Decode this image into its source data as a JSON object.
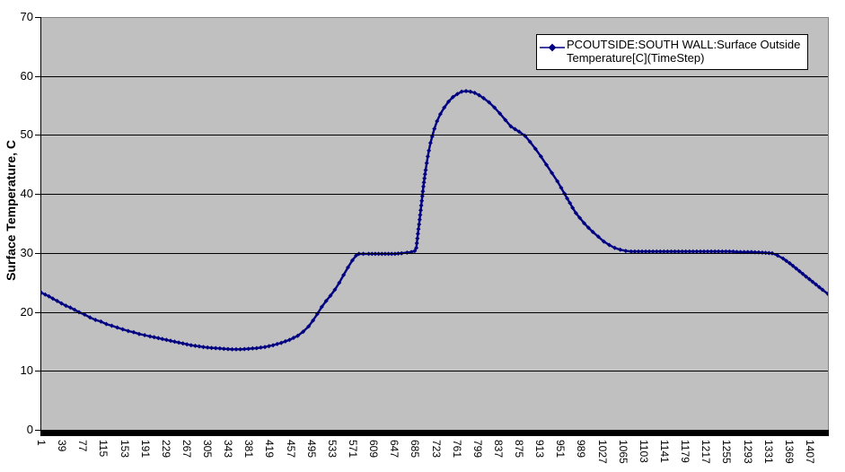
{
  "chart": {
    "y_axis": {
      "title": "Surface Temperature, C",
      "tick_values": [
        70,
        60,
        50,
        40,
        30,
        20,
        10,
        0
      ]
    },
    "x_axis": {
      "tick_values": [
        1,
        39,
        77,
        115,
        153,
        191,
        229,
        267,
        305,
        343,
        381,
        419,
        457,
        495,
        533,
        571,
        609,
        647,
        685,
        723,
        761,
        799,
        837,
        875,
        913,
        951,
        989,
        1027,
        1065,
        1103,
        1141,
        1179,
        1217,
        1255,
        1293,
        1331,
        1369,
        1407
      ]
    },
    "legend": {
      "line1": "PCOUTSIDE:SOUTH WALL:Surface Outside",
      "line2": "Temperature[C](TimeStep)",
      "marker_icon": "diamond-line-marker"
    },
    "colors": {
      "series": "#000080",
      "plot_background": "#c0c0c0",
      "gridline": "#000000",
      "chart_background": "#ffffff"
    }
  },
  "chart_data": {
    "type": "line",
    "title": "",
    "xlabel": "",
    "ylabel": "Surface Temperature, C",
    "xlim": [
      1,
      1440
    ],
    "ylim": [
      0,
      70
    ],
    "x_tick_step": 38,
    "grid": true,
    "gridline_values": [
      10,
      20,
      30,
      40,
      50,
      60
    ],
    "legend_position": "top-right",
    "series": [
      {
        "name": "PCOUTSIDE:SOUTH WALL:Surface Outside Temperature[C](TimeStep)",
        "marker": "diamond",
        "color": "#000080",
        "points": [
          [
            1,
            23.4
          ],
          [
            8,
            23.1
          ],
          [
            15,
            22.8
          ],
          [
            22,
            22.4
          ],
          [
            30,
            22.0
          ],
          [
            38,
            21.6
          ],
          [
            46,
            21.2
          ],
          [
            54,
            20.9
          ],
          [
            62,
            20.5
          ],
          [
            70,
            20.1
          ],
          [
            80,
            19.7
          ],
          [
            90,
            19.2
          ],
          [
            100,
            18.8
          ],
          [
            110,
            18.5
          ],
          [
            120,
            18.1
          ],
          [
            130,
            17.8
          ],
          [
            140,
            17.5
          ],
          [
            150,
            17.2
          ],
          [
            160,
            16.9
          ],
          [
            170,
            16.7
          ],
          [
            180,
            16.4
          ],
          [
            190,
            16.2
          ],
          [
            200,
            16.0
          ],
          [
            215,
            15.7
          ],
          [
            230,
            15.4
          ],
          [
            245,
            15.1
          ],
          [
            260,
            14.8
          ],
          [
            275,
            14.5
          ],
          [
            290,
            14.3
          ],
          [
            305,
            14.1
          ],
          [
            320,
            14.0
          ],
          [
            335,
            13.9
          ],
          [
            350,
            13.8
          ],
          [
            365,
            13.8
          ],
          [
            380,
            13.9
          ],
          [
            395,
            14.0
          ],
          [
            410,
            14.2
          ],
          [
            425,
            14.5
          ],
          [
            440,
            14.9
          ],
          [
            455,
            15.4
          ],
          [
            470,
            16.1
          ],
          [
            480,
            16.8
          ],
          [
            490,
            17.7
          ],
          [
            498,
            18.7
          ],
          [
            506,
            19.8
          ],
          [
            514,
            21.0
          ],
          [
            522,
            22.0
          ],
          [
            530,
            22.9
          ],
          [
            538,
            23.9
          ],
          [
            546,
            25.1
          ],
          [
            554,
            26.4
          ],
          [
            562,
            27.7
          ],
          [
            570,
            28.9
          ],
          [
            577,
            29.7
          ],
          [
            582,
            30.0
          ],
          [
            590,
            30.0
          ],
          [
            600,
            30.0
          ],
          [
            612,
            30.0
          ],
          [
            624,
            30.0
          ],
          [
            636,
            30.0
          ],
          [
            648,
            30.0
          ],
          [
            660,
            30.1
          ],
          [
            670,
            30.2
          ],
          [
            678,
            30.3
          ],
          [
            684,
            30.5
          ],
          [
            687,
            31.0
          ],
          [
            688,
            31.8
          ],
          [
            689,
            32.6
          ],
          [
            690,
            33.4
          ],
          [
            691,
            34.2
          ],
          [
            692,
            35.0
          ],
          [
            693,
            35.8
          ],
          [
            694,
            36.6
          ],
          [
            695,
            37.4
          ],
          [
            696,
            38.2
          ],
          [
            697,
            39.0
          ],
          [
            698,
            39.8
          ],
          [
            699,
            40.6
          ],
          [
            700,
            41.4
          ],
          [
            701,
            42.1
          ],
          [
            702,
            42.8
          ],
          [
            703,
            43.5
          ],
          [
            704,
            44.2
          ],
          [
            706,
            45.4
          ],
          [
            708,
            46.5
          ],
          [
            710,
            47.5
          ],
          [
            713,
            48.8
          ],
          [
            716,
            49.9
          ],
          [
            720,
            51.2
          ],
          [
            725,
            52.5
          ],
          [
            731,
            53.7
          ],
          [
            738,
            54.8
          ],
          [
            746,
            55.8
          ],
          [
            754,
            56.6
          ],
          [
            762,
            57.1
          ],
          [
            770,
            57.5
          ],
          [
            778,
            57.6
          ],
          [
            786,
            57.5
          ],
          [
            794,
            57.3
          ],
          [
            802,
            56.9
          ],
          [
            810,
            56.4
          ],
          [
            820,
            55.7
          ],
          [
            830,
            54.8
          ],
          [
            840,
            53.8
          ],
          [
            850,
            52.7
          ],
          [
            860,
            51.6
          ],
          [
            875,
            50.7
          ],
          [
            886,
            50.0
          ],
          [
            895,
            49.0
          ],
          [
            905,
            47.8
          ],
          [
            915,
            46.5
          ],
          [
            925,
            45.1
          ],
          [
            935,
            43.7
          ],
          [
            945,
            42.3
          ],
          [
            952,
            41.2
          ],
          [
            958,
            40.2
          ],
          [
            963,
            39.4
          ],
          [
            968,
            38.6
          ],
          [
            973,
            37.8
          ],
          [
            979,
            36.9
          ],
          [
            986,
            36.1
          ],
          [
            994,
            35.2
          ],
          [
            1002,
            34.4
          ],
          [
            1010,
            33.7
          ],
          [
            1020,
            32.9
          ],
          [
            1030,
            32.1
          ],
          [
            1040,
            31.5
          ],
          [
            1050,
            31.0
          ],
          [
            1060,
            30.7
          ],
          [
            1070,
            30.5
          ],
          [
            1080,
            30.4
          ],
          [
            1100,
            30.4
          ],
          [
            1120,
            30.4
          ],
          [
            1140,
            30.4
          ],
          [
            1160,
            30.4
          ],
          [
            1180,
            30.4
          ],
          [
            1200,
            30.4
          ],
          [
            1220,
            30.4
          ],
          [
            1240,
            30.4
          ],
          [
            1260,
            30.4
          ],
          [
            1280,
            30.3
          ],
          [
            1300,
            30.3
          ],
          [
            1320,
            30.2
          ],
          [
            1338,
            30.1
          ],
          [
            1348,
            29.7
          ],
          [
            1358,
            29.2
          ],
          [
            1370,
            28.4
          ],
          [
            1382,
            27.5
          ],
          [
            1394,
            26.6
          ],
          [
            1406,
            25.7
          ],
          [
            1418,
            24.8
          ],
          [
            1430,
            23.9
          ],
          [
            1440,
            23.2
          ]
        ]
      }
    ]
  }
}
